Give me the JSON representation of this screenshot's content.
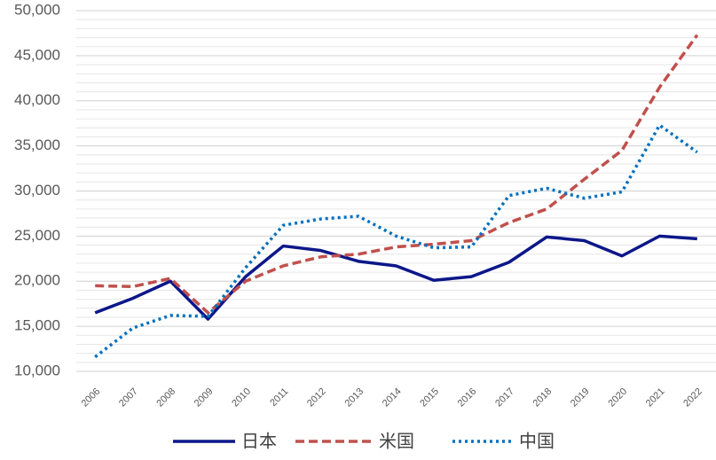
{
  "chart_data": {
    "type": "line",
    "categories": [
      "2006",
      "2007",
      "2008",
      "2009",
      "2010",
      "2011",
      "2012",
      "2013",
      "2014",
      "2015",
      "2016",
      "2017",
      "2018",
      "2019",
      "2020",
      "2021",
      "2022"
    ],
    "series": [
      {
        "name": "日本",
        "color": "#0c1789",
        "style": "solid",
        "values": [
          16500,
          18100,
          20000,
          15800,
          20500,
          23900,
          23400,
          22200,
          21700,
          20100,
          20500,
          22100,
          24900,
          24500,
          22800,
          25000,
          24700
        ]
      },
      {
        "name": "米国",
        "color": "#c0504d",
        "style": "dashed",
        "values": [
          19500,
          19400,
          20300,
          16500,
          20000,
          21700,
          22700,
          23000,
          23800,
          24100,
          24500,
          26500,
          28000,
          31300,
          34500,
          41500,
          47300
        ]
      },
      {
        "name": "中国",
        "color": "#0070c0",
        "style": "dotted",
        "values": [
          11600,
          14800,
          16200,
          16100,
          21500,
          26200,
          26900,
          27200,
          25000,
          23700,
          23800,
          29500,
          30300,
          29200,
          29900,
          37300,
          34300
        ]
      }
    ],
    "ylim": [
      10000,
      50000
    ],
    "yticks": [
      {
        "value": 10000,
        "label": "10,000"
      },
      {
        "value": 15000,
        "label": "15,000"
      },
      {
        "value": 20000,
        "label": "20,000"
      },
      {
        "value": 25000,
        "label": "25,000"
      },
      {
        "value": 30000,
        "label": "30,000"
      },
      {
        "value": 35000,
        "label": "35,000"
      },
      {
        "value": 40000,
        "label": "40,000"
      },
      {
        "value": 45000,
        "label": "45,000"
      },
      {
        "value": 50000,
        "label": "50,000"
      }
    ],
    "yminorticks": [
      11000,
      12000,
      13000,
      14000,
      16000,
      17000,
      18000,
      19000,
      21000,
      22000,
      23000,
      24000,
      26000,
      27000,
      28000,
      29000,
      31000,
      32000,
      33000,
      34000,
      36000,
      37000,
      38000,
      39000,
      41000,
      42000,
      43000,
      44000,
      46000,
      47000,
      48000,
      49000
    ],
    "grid": true,
    "legend": "bottom"
  }
}
